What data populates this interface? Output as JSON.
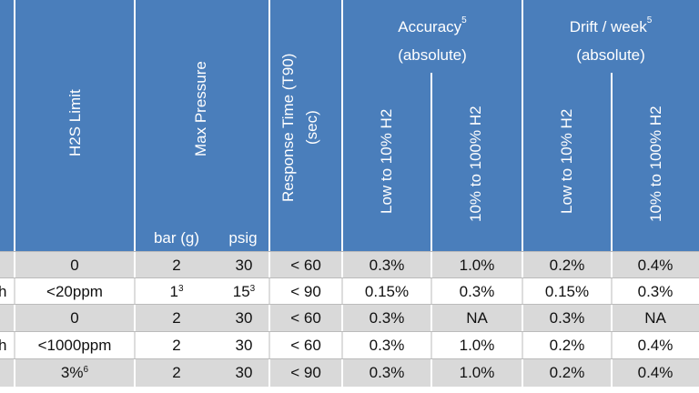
{
  "header": {
    "h2s_limit": "H2S Limit",
    "max_pressure": "Max Pressure",
    "bar_g": "bar (g)",
    "psig": "psig",
    "response_time": [
      "Response Time (T90)",
      "(sec)"
    ],
    "accuracy": {
      "title": "Accuracy",
      "sup": "5",
      "sub": "(absolute)"
    },
    "drift": {
      "title": "Drift / week",
      "sup": "5",
      "sub": "(absolute)"
    },
    "accuracy_cols": [
      "Low to 10% H2",
      "10% to 100% H2"
    ],
    "drift_cols": [
      "Low to 10% H2",
      "10% to 100% H2"
    ]
  },
  "table": {
    "rows": [
      [
        null,
        "0",
        "2",
        "30",
        "< 60",
        "0.3%",
        "1.0%",
        "0.2%",
        "0.4%"
      ],
      [
        "h",
        "<20ppm",
        {
          "text": "1",
          "sup": "3"
        },
        {
          "text": "15",
          "sup": "3"
        },
        "< 90",
        "0.15%",
        "0.3%",
        "0.15%",
        "0.3%"
      ],
      [
        null,
        "0",
        "2",
        "30",
        "< 60",
        "0.3%",
        "NA",
        "0.3%",
        "NA"
      ],
      [
        "h",
        "<1000ppm",
        "2",
        "30",
        "< 60",
        "0.3%",
        "1.0%",
        "0.2%",
        "0.4%"
      ],
      [
        null,
        {
          "text": "3%",
          "sup": "6"
        },
        "2",
        "30",
        "< 90",
        "0.3%",
        "1.0%",
        "0.2%",
        "0.4%"
      ]
    ]
  }
}
